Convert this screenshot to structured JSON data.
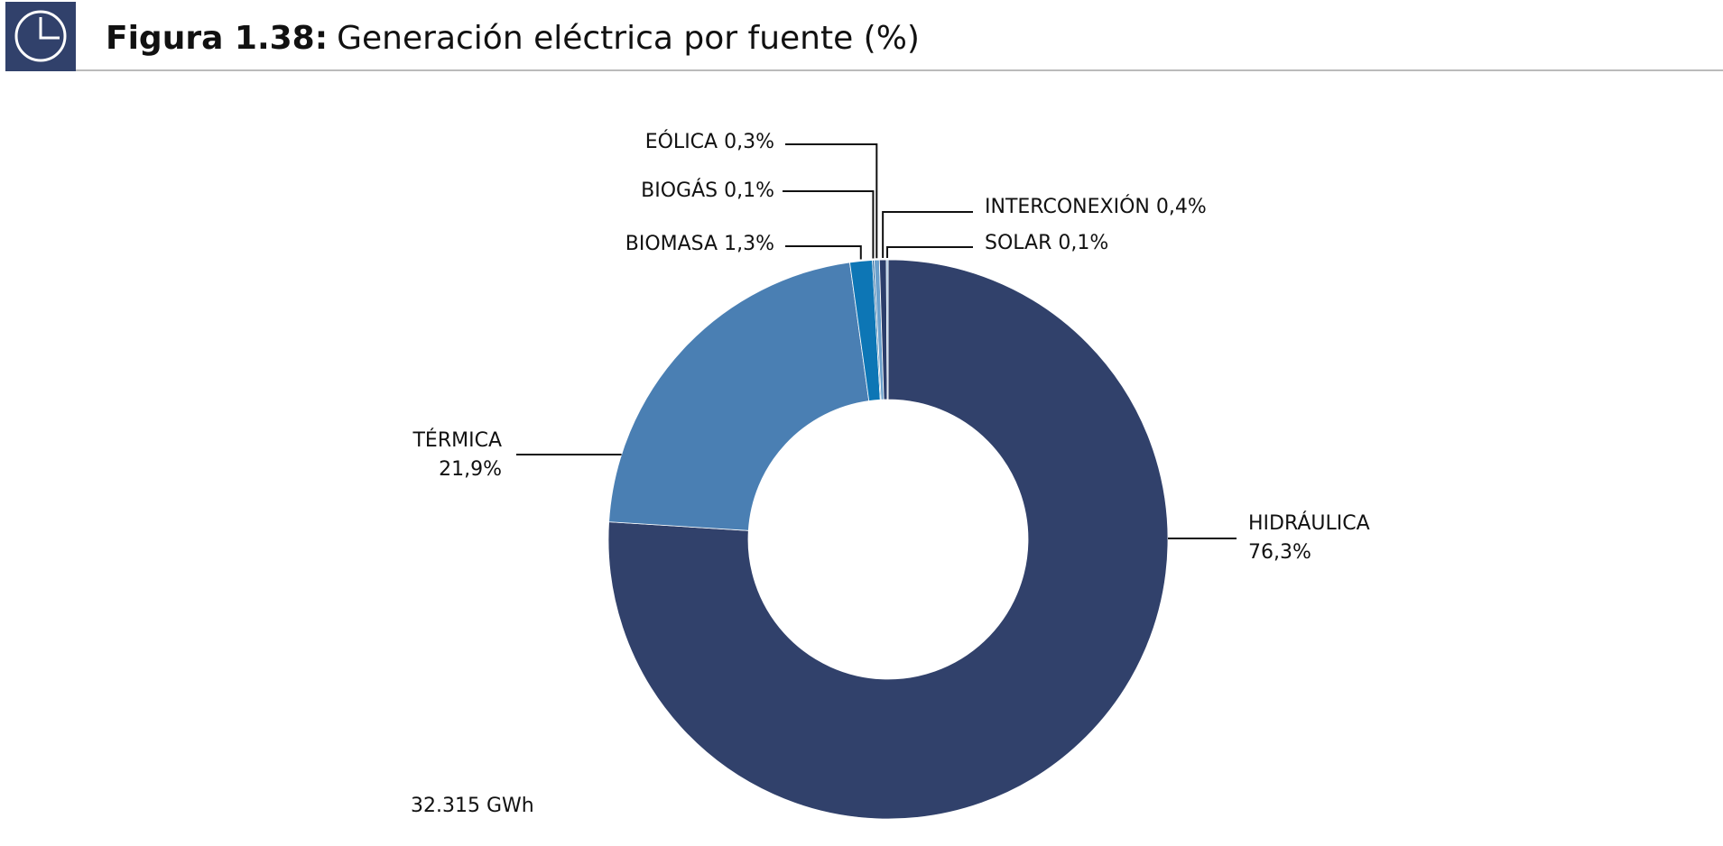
{
  "chart_data": {
    "type": "donut",
    "figure_label": "Figura 1.38:",
    "title": "Generación eléctrica por fuente (%)",
    "categories": [
      "HIDRÁULICA",
      "TÉRMICA",
      "BIOMASA",
      "BIOGÁS",
      "EÓLICA",
      "INTERCONEXIÓN",
      "SOLAR"
    ],
    "values": [
      76.3,
      21.9,
      1.3,
      0.1,
      0.3,
      0.4,
      0.1
    ],
    "value_labels": [
      "76,3%",
      "21,9%",
      "1,3%",
      "0,1%",
      "0,3%",
      "0,4%",
      "0,1%"
    ],
    "colors": [
      "#31416b",
      "#4a7fb3",
      "#0d76b5",
      "#1a5c95",
      "#6aa0cc",
      "#2c3e6b",
      "#8fb5d8"
    ],
    "annotation": "32.315 GWh"
  }
}
